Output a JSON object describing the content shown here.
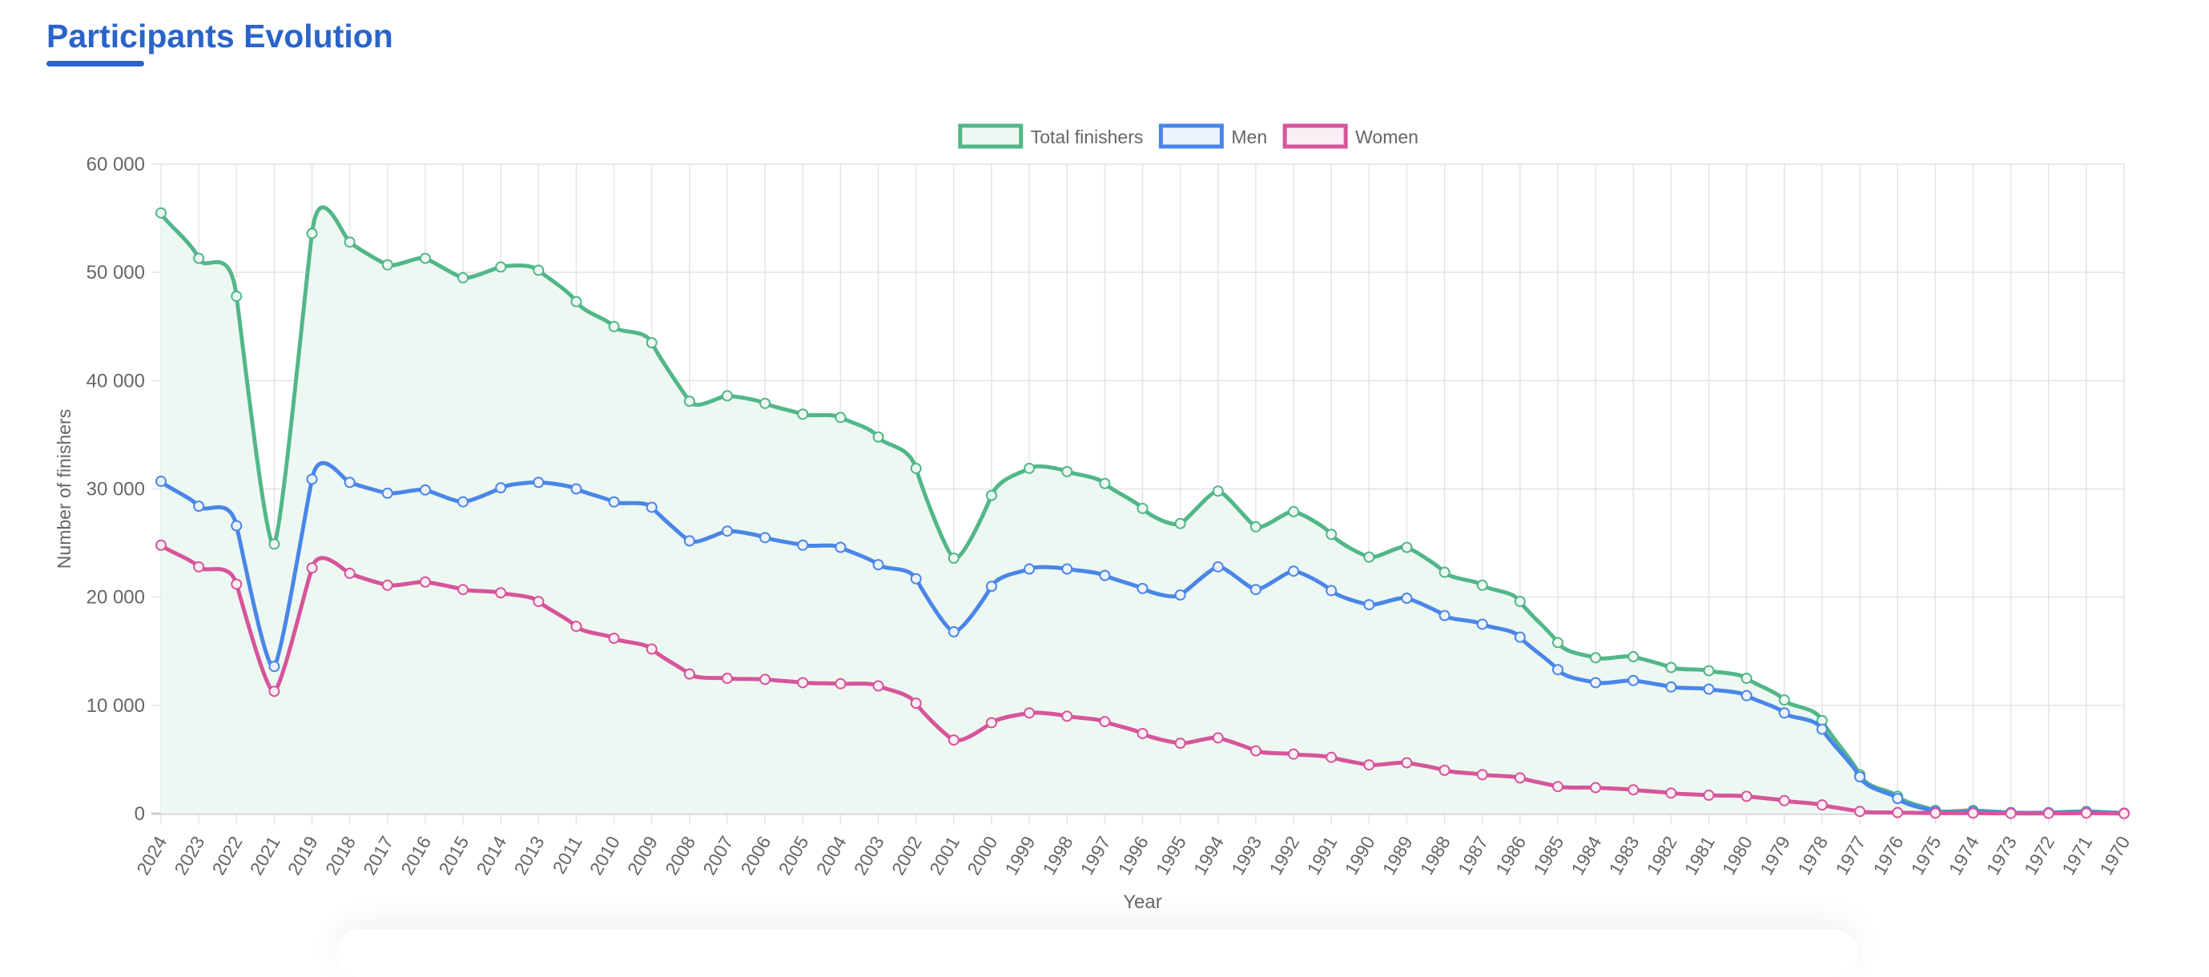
{
  "page": {
    "title": "Participants Evolution"
  },
  "chart_data": {
    "type": "line",
    "title": "",
    "xlabel": "Year",
    "ylabel": "Number of finishers",
    "ylim": [
      0,
      60000
    ],
    "yticks": [
      "0",
      "10 000",
      "20 000",
      "30 000",
      "40 000",
      "50 000",
      "60 000"
    ],
    "grid": true,
    "legend_position": "top",
    "categories": [
      "2024",
      "2023",
      "2022",
      "2021",
      "2019",
      "2018",
      "2017",
      "2016",
      "2015",
      "2014",
      "2013",
      "2011",
      "2010",
      "2009",
      "2008",
      "2007",
      "2006",
      "2005",
      "2004",
      "2003",
      "2002",
      "2001",
      "2000",
      "1999",
      "1998",
      "1997",
      "1996",
      "1995",
      "1994",
      "1993",
      "1992",
      "1991",
      "1990",
      "1989",
      "1988",
      "1987",
      "1986",
      "1985",
      "1984",
      "1983",
      "1982",
      "1981",
      "1980",
      "1979",
      "1978",
      "1977",
      "1976",
      "1975",
      "1974",
      "1973",
      "1972",
      "1971",
      "1970"
    ],
    "series": [
      {
        "name": "Total finishers",
        "color": "#52b788",
        "fill": "#eef8f2",
        "filled": true,
        "values": [
          55500,
          51300,
          47800,
          24900,
          53600,
          52800,
          50700,
          51300,
          49500,
          50500,
          50200,
          47300,
          45000,
          43500,
          38100,
          38600,
          37900,
          36900,
          36600,
          34800,
          31900,
          23600,
          29400,
          31900,
          31600,
          30500,
          28200,
          26800,
          29800,
          26500,
          27900,
          25800,
          23700,
          24600,
          22300,
          21100,
          19600,
          15800,
          14400,
          14500,
          13500,
          13200,
          12500,
          10500,
          8600,
          3600,
          1600,
          300,
          300,
          100,
          100,
          200,
          50
        ]
      },
      {
        "name": "Men",
        "color": "#4a86e8",
        "fill": "#edf3fd",
        "filled": false,
        "values": [
          30700,
          28400,
          26600,
          13600,
          30900,
          30600,
          29600,
          29900,
          28800,
          30100,
          30600,
          30000,
          28800,
          28300,
          25200,
          26100,
          25500,
          24800,
          24600,
          23000,
          21700,
          16800,
          21000,
          22600,
          22600,
          22000,
          20800,
          20200,
          22800,
          20700,
          22400,
          20600,
          19300,
          19900,
          18300,
          17500,
          16300,
          13300,
          12100,
          12300,
          11700,
          11500,
          10900,
          9300,
          7800,
          3400,
          1400,
          200,
          200,
          80,
          80,
          150,
          40
        ]
      },
      {
        "name": "Women",
        "color": "#d6559b",
        "fill": "#fbeef5",
        "filled": false,
        "values": [
          24800,
          22800,
          21200,
          11300,
          22700,
          22200,
          21100,
          21400,
          20700,
          20400,
          19600,
          17300,
          16200,
          15200,
          12900,
          12500,
          12400,
          12100,
          12000,
          11800,
          10200,
          6800,
          8400,
          9300,
          9000,
          8500,
          7400,
          6500,
          7000,
          5800,
          5500,
          5200,
          4500,
          4700,
          4000,
          3600,
          3300,
          2500,
          2400,
          2200,
          1900,
          1700,
          1600,
          1200,
          800,
          200,
          100,
          50,
          50,
          20,
          20,
          50,
          10
        ]
      }
    ]
  }
}
